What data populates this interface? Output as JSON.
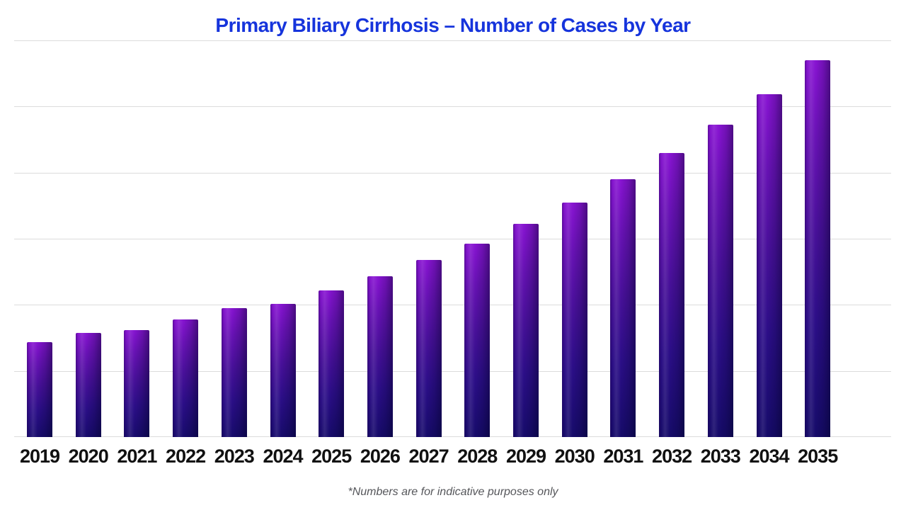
{
  "page": {
    "background": "#ffffff"
  },
  "title": {
    "text": "Primary Biliary Cirrhosis – Number of Cases by Year",
    "color": "#1634dc"
  },
  "footnote": {
    "text": "*Numbers are for indicative purposes only",
    "color": "#55565a"
  },
  "chart_data": {
    "type": "bar",
    "title": "Primary Biliary Cirrhosis – Number of Cases by Year",
    "categories": [
      "2019",
      "2020",
      "2021",
      "2022",
      "2023",
      "2024",
      "2025",
      "2026",
      "2027",
      "2028",
      "2029",
      "2030",
      "2031",
      "2032",
      "2033",
      "2034",
      "2035"
    ],
    "values": [
      1.44,
      1.57,
      1.62,
      1.78,
      1.95,
      2.01,
      2.22,
      2.43,
      2.68,
      2.93,
      3.22,
      3.55,
      3.9,
      4.3,
      4.72,
      5.19,
      5.7
    ],
    "value_scale": "relative units estimated from gridlines (no y-axis tick labels shown; 1.0 = one gridline interval)",
    "xlabel": "",
    "ylabel": "",
    "ylim": [
      0,
      6
    ],
    "y_tick_labels": [],
    "gridline_count": 7,
    "grid": true,
    "legend": false,
    "gridline_color": "#dcdcdc",
    "x_tick_color": "#111111",
    "bar_gradient": [
      "#8a14d4",
      "#47109a",
      "#150b68"
    ]
  }
}
